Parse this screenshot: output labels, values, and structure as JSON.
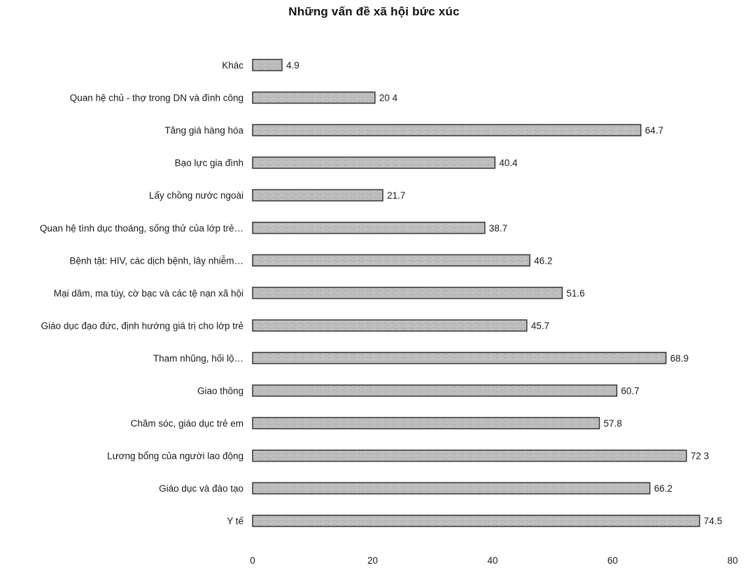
{
  "chart_data": {
    "type": "bar",
    "orientation": "horizontal",
    "title": "Những vấn đề xã hội bức xúc",
    "xlabel": "",
    "ylabel": "",
    "xlim": [
      0,
      80
    ],
    "x_ticks": [
      "0",
      "20",
      "40",
      "60",
      "80"
    ],
    "grid": false,
    "legend": "none",
    "bar_color": "#b8b8b8",
    "categories": [
      "Khác",
      "Quan hệ chủ - thợ trong DN và đình công",
      "Tăng giá hàng hóa",
      "Bạo lực gia đình",
      "Lấy chồng nước ngoài",
      "Quan hệ tình dục thoáng, sống thử của lớp trẻ…",
      "Bệnh tật: HIV, các dịch bệnh, lây nhiễm…",
      "Mại dâm, ma túy, cờ bạc và các tệ nạn xã hội",
      "Giáo dục đạo đức, định hướng giá trị cho lớp trẻ",
      "Tham nhũng, hối lộ…",
      "Giao thông",
      "Chăm sóc, giáo dục trẻ em",
      "Lương bổng của người lao động",
      "Giáo dục và đào tạo",
      "Y tế"
    ],
    "values": [
      4.9,
      20.4,
      64.7,
      40.4,
      21.7,
      38.7,
      46.2,
      51.6,
      45.7,
      68.9,
      60.7,
      57.8,
      72.3,
      66.2,
      74.5
    ],
    "value_labels": [
      "4.9",
      "20 4",
      "64.7",
      "40.4",
      "21.7",
      "38.7",
      "46.2",
      "51.6",
      "45.7",
      "68.9",
      "60.7",
      "57.8",
      "72 3",
      "66.2",
      "74.5"
    ]
  }
}
